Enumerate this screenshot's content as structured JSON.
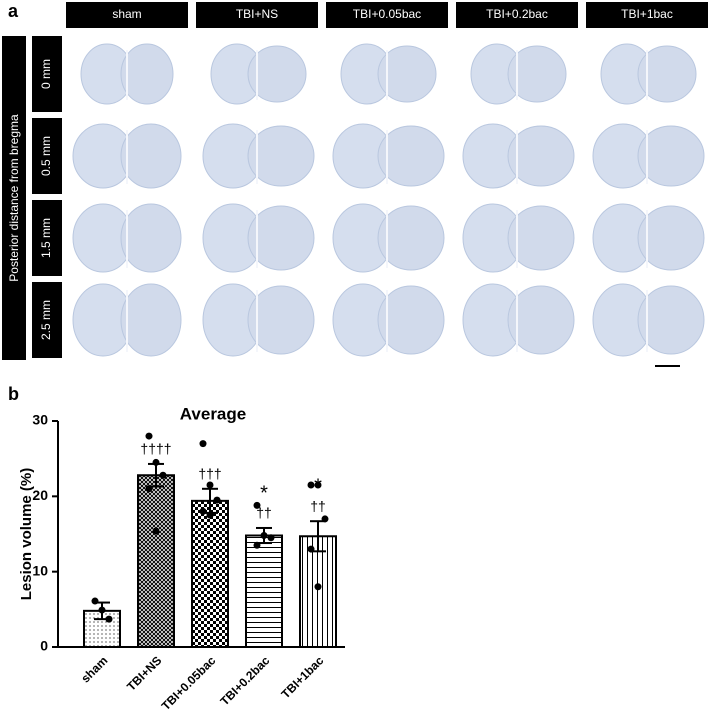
{
  "panel_a": {
    "label": "a",
    "columns": [
      "sham",
      "TBI+NS",
      "TBI+0.05bac",
      "TBI+0.2bac",
      "TBI+1bac"
    ],
    "row_axis_label": "Posterior distance from bregma",
    "rows": [
      "0 mm",
      "0.5 mm",
      "1.5 mm",
      "2.5 mm"
    ]
  },
  "chart_data": {
    "type": "bar",
    "panel_label": "b",
    "title": "Average",
    "y_label": "Lesion volume (%)",
    "categories": [
      "sham",
      "TBI+NS",
      "TBI+0.05bac",
      "TBI+0.2bac",
      "TBI+1bac"
    ],
    "values": [
      4.8,
      22.8,
      19.4,
      14.8,
      14.7
    ],
    "errors": [
      1.1,
      1.5,
      1.6,
      1.0,
      2.0
    ],
    "points": [
      [
        6.1,
        4.9,
        3.7
      ],
      [
        28.0,
        24.5,
        22.8,
        21.0,
        15.4
      ],
      [
        27.0,
        21.5,
        19.5,
        18.0,
        17.5
      ],
      [
        18.8,
        14.8,
        14.5,
        13.5
      ],
      [
        21.5,
        21.5,
        17.0,
        13.0,
        8.0
      ]
    ],
    "stars": [
      null,
      null,
      null,
      "*",
      "*"
    ],
    "daggers": [
      null,
      "††††",
      "†††",
      "††",
      "††"
    ],
    "patterns": [
      "dots",
      "crosshatch",
      "checker",
      "hlines",
      "vlines"
    ],
    "color": "#000000",
    "ylim": [
      0,
      30
    ],
    "yticks": [
      0,
      10,
      20,
      30
    ]
  }
}
